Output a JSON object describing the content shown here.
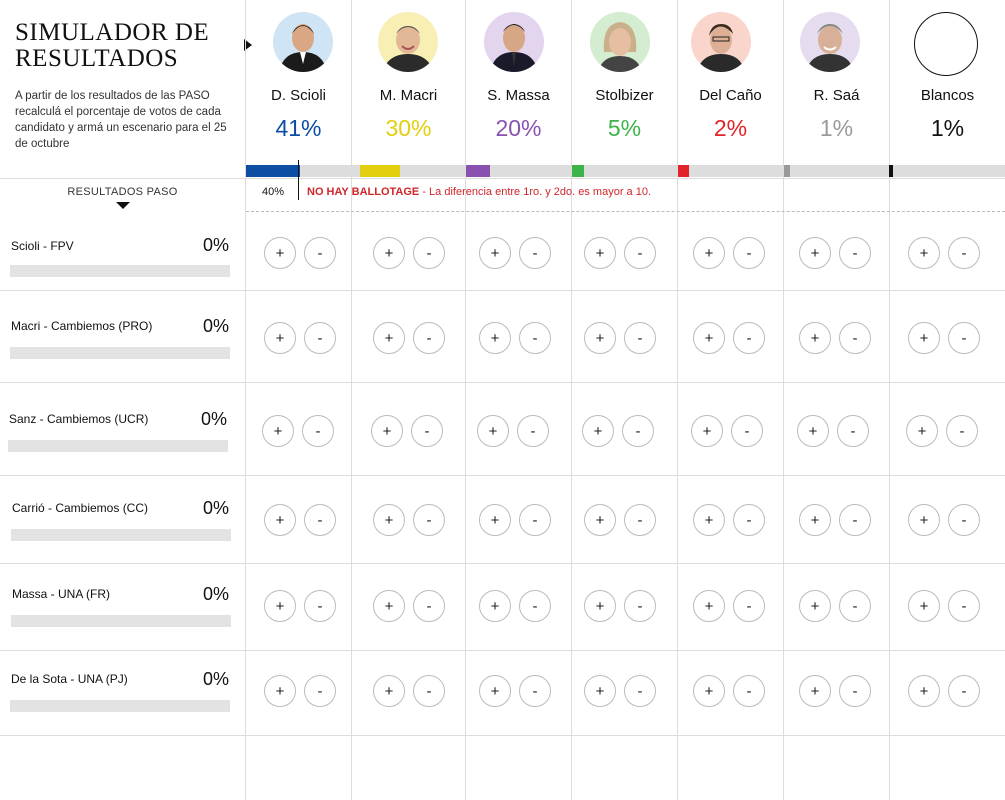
{
  "header": {
    "title_line1": "SIMULADOR DE",
    "title_line2": "RESULTADOS",
    "description": "A partir de los resultados de las PASO recalculá el porcentaje de votos de cada candidato y armá un escenario para el 25 de octubre"
  },
  "candidates": [
    {
      "name": "D. Scioli",
      "pct": "41%",
      "color": "#0b4ea2"
    },
    {
      "name": "M. Macri",
      "pct": "30%",
      "color": "#e3cf0d"
    },
    {
      "name": "S. Massa",
      "pct": "20%",
      "color": "#8a52b0"
    },
    {
      "name": "Stolbizer",
      "pct": "5%",
      "color": "#3db44a"
    },
    {
      "name": "Del Caño",
      "pct": "2%",
      "color": "#e2232b"
    },
    {
      "name": "R. Saá",
      "pct": "1%",
      "color": "#9a9a9a"
    },
    {
      "name": "Blancos",
      "pct": "1%",
      "color": "#111111"
    }
  ],
  "threshold": {
    "label": "40%"
  },
  "ballotage": {
    "strong": "NO HAY BALLOTAGE",
    "rest": " - La diferencia entre 1ro. y 2do. es mayor a 10."
  },
  "paso": {
    "heading": "RESULTADOS PASO",
    "rows": [
      {
        "label": "Scioli - FPV",
        "pct": "0%"
      },
      {
        "label": "Macri - Cambiemos (PRO)",
        "pct": "0%"
      },
      {
        "label": "Sanz - Cambiemos (UCR)",
        "pct": "0%"
      },
      {
        "label": "Carrió - Cambiemos (CC)",
        "pct": "0%"
      },
      {
        "label": "Massa - UNA (FR)",
        "pct": "0%"
      },
      {
        "label": "De la Sota - UNA (PJ)",
        "pct": "0%"
      }
    ]
  },
  "buttons": {
    "plus": "+",
    "minus": "-"
  }
}
